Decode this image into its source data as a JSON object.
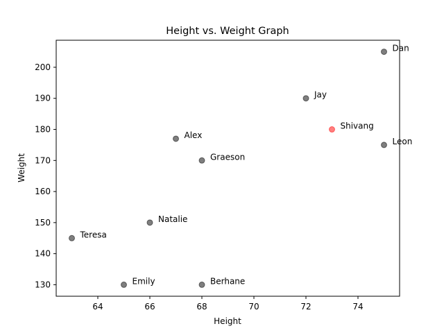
{
  "chart_data": {
    "type": "scatter",
    "title": "Height vs. Weight Graph",
    "xlabel": "Height",
    "ylabel": "Weight",
    "xlim": [
      62.4,
      75.6
    ],
    "ylim": [
      126.3,
      208.7
    ],
    "xticks": [
      64,
      66,
      68,
      70,
      72,
      74
    ],
    "yticks": [
      130,
      140,
      150,
      160,
      170,
      180,
      190,
      200
    ],
    "grid": false,
    "colors": {
      "default": "#000000",
      "highlight": "#ff0000"
    },
    "points": [
      {
        "label": "Dan",
        "x": 75,
        "y": 205,
        "highlight": false
      },
      {
        "label": "Jay",
        "x": 72,
        "y": 190,
        "highlight": false
      },
      {
        "label": "Shivang",
        "x": 73,
        "y": 180,
        "highlight": true
      },
      {
        "label": "Leon",
        "x": 75,
        "y": 175,
        "highlight": false
      },
      {
        "label": "Alex",
        "x": 67,
        "y": 177,
        "highlight": false
      },
      {
        "label": "Graeson",
        "x": 68,
        "y": 170,
        "highlight": false
      },
      {
        "label": "Natalie",
        "x": 66,
        "y": 150,
        "highlight": false
      },
      {
        "label": "Teresa",
        "x": 63,
        "y": 145,
        "highlight": false
      },
      {
        "label": "Emily",
        "x": 65,
        "y": 130,
        "highlight": false
      },
      {
        "label": "Berhane",
        "x": 68,
        "y": 130,
        "highlight": false
      }
    ]
  }
}
